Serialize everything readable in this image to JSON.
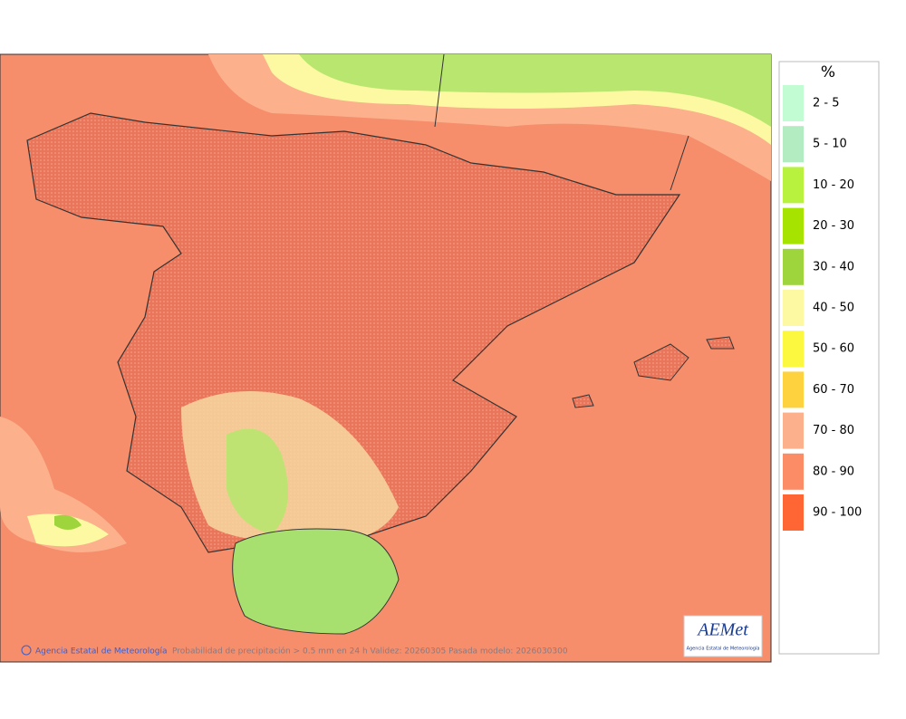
{
  "legend": {
    "title": "%",
    "items": [
      {
        "label": "2 - 5",
        "color": "#c2fcd2"
      },
      {
        "label": "5 - 10",
        "color": "#b2ecc0"
      },
      {
        "label": "10 - 20",
        "color": "#b8f23e"
      },
      {
        "label": "20 - 30",
        "color": "#a6e400"
      },
      {
        "label": "30 - 40",
        "color": "#9ed43c"
      },
      {
        "label": "40 - 50",
        "color": "#fdf9a2"
      },
      {
        "label": "50 - 60",
        "color": "#fcf840"
      },
      {
        "label": "60 - 70",
        "color": "#fed23e"
      },
      {
        "label": "70 - 80",
        "color": "#fcb08c"
      },
      {
        "label": "80 - 90",
        "color": "#fc8c66"
      },
      {
        "label": "90 - 100",
        "color": "#ff6633"
      }
    ]
  },
  "footer": {
    "credit": "Agencia Estatal de Meteorología",
    "caption": "Probabilidad de precipitación > 0.5 mm en 24 h Validez: 20260305 Pasada modelo: 2026030300"
  },
  "logo": {
    "name": "AEMet",
    "subtitle": "Agencia Estatal de Meteorología"
  }
}
